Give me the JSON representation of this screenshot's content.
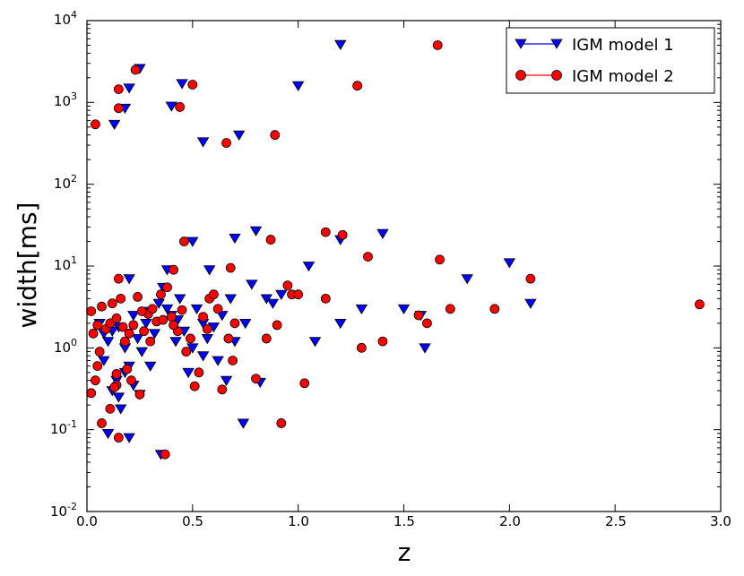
{
  "chart_data": {
    "type": "scatter",
    "title": "",
    "xlabel": "z",
    "ylabel": "width[ms]",
    "xlim": [
      0,
      3
    ],
    "ylim": [
      0.01,
      10000
    ],
    "yscale": "log",
    "grid": false,
    "legend_position": "top-right",
    "x_ticks": [
      "0.0",
      "0.5",
      "1.0",
      "1.5",
      "2.0",
      "2.5",
      "3.0"
    ],
    "y_ticks": [
      {
        "base": "10",
        "exp": "-2"
      },
      {
        "base": "10",
        "exp": "-1"
      },
      {
        "base": "10",
        "exp": "0"
      },
      {
        "base": "10",
        "exp": "1"
      },
      {
        "base": "10",
        "exp": "2"
      },
      {
        "base": "10",
        "exp": "3"
      },
      {
        "base": "10",
        "exp": "4"
      }
    ],
    "series": [
      {
        "name": "IGM model 1",
        "marker": "triangle-down",
        "color": "#0000ff",
        "points": [
          [
            0.1,
            0.09
          ],
          [
            0.12,
            0.3
          ],
          [
            0.14,
            0.4
          ],
          [
            0.16,
            0.18
          ],
          [
            0.18,
            0.5
          ],
          [
            0.2,
            0.6
          ],
          [
            0.2,
            0.08
          ],
          [
            0.22,
            0.35
          ],
          [
            0.22,
            2.5
          ],
          [
            0.25,
            2600
          ],
          [
            0.13,
            540
          ],
          [
            0.18,
            850
          ],
          [
            0.2,
            1500
          ],
          [
            0.35,
            0.05
          ],
          [
            0.4,
            900
          ],
          [
            0.45,
            1700
          ],
          [
            0.55,
            330
          ],
          [
            0.72,
            400
          ],
          [
            0.74,
            0.12
          ],
          [
            0.8,
            27
          ],
          [
            0.7,
            22
          ],
          [
            0.5,
            20
          ],
          [
            0.85,
            4.0
          ],
          [
            0.82,
            0.38
          ],
          [
            1.0,
            1600
          ],
          [
            1.2,
            5100
          ],
          [
            1.2,
            21
          ],
          [
            1.4,
            25
          ],
          [
            1.05,
            10
          ],
          [
            1.08,
            1.2
          ],
          [
            1.2,
            2.0
          ],
          [
            1.3,
            3.0
          ],
          [
            1.5,
            3.0
          ],
          [
            1.58,
            2.5
          ],
          [
            1.6,
            1.0
          ],
          [
            1.8,
            7.0
          ],
          [
            2.0,
            11
          ],
          [
            2.1,
            3.5
          ],
          [
            0.06,
            2.0
          ],
          [
            0.08,
            1.5
          ],
          [
            0.1,
            1.2
          ],
          [
            0.12,
            1.6
          ],
          [
            0.15,
            1.8
          ],
          [
            0.18,
            1.0
          ],
          [
            0.2,
            7.0
          ],
          [
            0.24,
            1.3
          ],
          [
            0.26,
            0.9
          ],
          [
            0.28,
            2.0
          ],
          [
            0.3,
            2.8
          ],
          [
            0.32,
            1.5
          ],
          [
            0.34,
            3.5
          ],
          [
            0.36,
            5.5
          ],
          [
            0.38,
            9.0
          ],
          [
            0.4,
            2.5
          ],
          [
            0.42,
            1.2
          ],
          [
            0.44,
            4.0
          ],
          [
            0.46,
            1.6
          ],
          [
            0.48,
            0.5
          ],
          [
            0.5,
            1.0
          ],
          [
            0.52,
            3.0
          ],
          [
            0.55,
            2.0
          ],
          [
            0.57,
            1.3
          ],
          [
            0.58,
            9.0
          ],
          [
            0.6,
            1.8
          ],
          [
            0.62,
            0.7
          ],
          [
            0.64,
            2.5
          ],
          [
            0.66,
            0.4
          ],
          [
            0.68,
            4.0
          ],
          [
            0.7,
            1.2
          ],
          [
            0.75,
            2.0
          ],
          [
            0.78,
            6.0
          ],
          [
            0.88,
            3.5
          ],
          [
            0.92,
            4.5
          ],
          [
            0.25,
            0.27
          ],
          [
            0.3,
            0.6
          ],
          [
            0.15,
            0.25
          ],
          [
            0.08,
            0.7
          ],
          [
            0.38,
            3.0
          ],
          [
            0.43,
            2.2
          ],
          [
            0.55,
            0.8
          ]
        ]
      },
      {
        "name": "IGM model 2",
        "marker": "circle",
        "color": "#ff0000",
        "points": [
          [
            0.04,
            540
          ],
          [
            0.15,
            1450
          ],
          [
            0.15,
            850
          ],
          [
            0.23,
            2500
          ],
          [
            0.44,
            880
          ],
          [
            0.5,
            1650
          ],
          [
            0.66,
            320
          ],
          [
            0.89,
            400
          ],
          [
            1.28,
            1600
          ],
          [
            1.66,
            5000
          ],
          [
            0.46,
            20
          ],
          [
            0.87,
            21
          ],
          [
            1.13,
            26
          ],
          [
            1.21,
            24
          ],
          [
            1.33,
            13
          ],
          [
            1.67,
            12
          ],
          [
            2.1,
            7.0
          ],
          [
            0.68,
            9.5
          ],
          [
            0.41,
            9.0
          ],
          [
            0.15,
            7.0
          ],
          [
            0.95,
            5.8
          ],
          [
            0.97,
            4.5
          ],
          [
            1.0,
            4.5
          ],
          [
            1.13,
            4.0
          ],
          [
            1.57,
            2.5
          ],
          [
            1.61,
            2.0
          ],
          [
            1.72,
            3.0
          ],
          [
            1.93,
            3.0
          ],
          [
            2.9,
            3.4
          ],
          [
            1.3,
            1.0
          ],
          [
            1.4,
            1.2
          ],
          [
            0.9,
            1.9
          ],
          [
            0.85,
            1.3
          ],
          [
            0.8,
            0.42
          ],
          [
            0.92,
            0.12
          ],
          [
            1.03,
            0.37
          ],
          [
            0.37,
            0.05
          ],
          [
            0.15,
            0.08
          ],
          [
            0.07,
            0.12
          ],
          [
            0.11,
            0.18
          ],
          [
            0.02,
            0.28
          ],
          [
            0.04,
            0.4
          ],
          [
            0.06,
            0.9
          ],
          [
            0.05,
            0.6
          ],
          [
            0.14,
            0.48
          ],
          [
            0.19,
            0.55
          ],
          [
            0.25,
            0.27
          ],
          [
            0.14,
            0.35
          ],
          [
            0.21,
            0.4
          ],
          [
            0.13,
            0.33
          ],
          [
            0.02,
            2.8
          ],
          [
            0.03,
            1.5
          ],
          [
            0.05,
            1.9
          ],
          [
            0.07,
            3.2
          ],
          [
            0.09,
            1.7
          ],
          [
            0.11,
            2.0
          ],
          [
            0.12,
            3.5
          ],
          [
            0.14,
            2.3
          ],
          [
            0.16,
            4.0
          ],
          [
            0.18,
            1.2
          ],
          [
            0.2,
            1.5
          ],
          [
            0.22,
            1.9
          ],
          [
            0.24,
            4.2
          ],
          [
            0.27,
            1.6
          ],
          [
            0.29,
            2.6
          ],
          [
            0.31,
            3.0
          ],
          [
            0.33,
            2.1
          ],
          [
            0.35,
            4.5
          ],
          [
            0.38,
            5.5
          ],
          [
            0.4,
            2.4
          ],
          [
            0.43,
            1.6
          ],
          [
            0.45,
            2.9
          ],
          [
            0.47,
            0.9
          ],
          [
            0.49,
            1.3
          ],
          [
            0.51,
            0.34
          ],
          [
            0.53,
            0.5
          ],
          [
            0.55,
            2.4
          ],
          [
            0.57,
            1.7
          ],
          [
            0.58,
            4.0
          ],
          [
            0.6,
            4.5
          ],
          [
            0.62,
            3.0
          ],
          [
            0.64,
            0.31
          ],
          [
            0.67,
            1.3
          ],
          [
            0.69,
            0.7
          ],
          [
            0.7,
            2.0
          ],
          [
            0.3,
            1.2
          ],
          [
            0.26,
            2.8
          ],
          [
            0.17,
            1.8
          ],
          [
            0.36,
            2.2
          ],
          [
            0.41,
            1.9
          ]
        ]
      }
    ]
  }
}
